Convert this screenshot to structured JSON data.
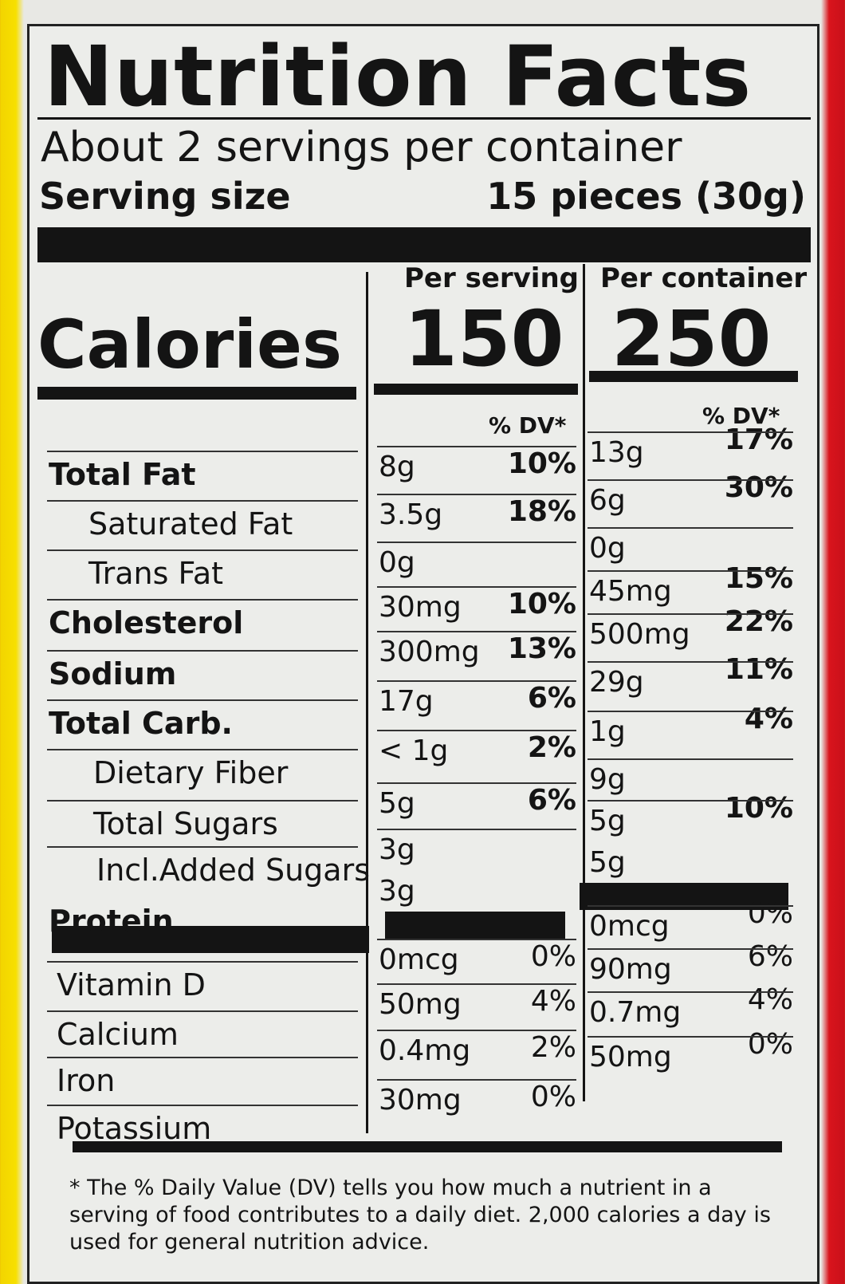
{
  "title": "Nutrition Facts",
  "servings": "About 2 servings per container",
  "serving_size": {
    "label": "Serving size",
    "value": "15 pieces (30g)"
  },
  "calories": {
    "label": "Calories",
    "per_serving": {
      "header": "Per serving",
      "value": 150
    },
    "per_container": {
      "header": "Per container",
      "value": 250
    }
  },
  "dv_header": [
    "% DV*",
    "% DV*"
  ],
  "nutrients": [
    "Total Fat",
    "Saturated Fat",
    "Trans Fat",
    "Cholesterol",
    "Sodium",
    "Total Carb.",
    "Dietary Fiber",
    "Total Sugars",
    "Incl.Added Sugars",
    "Protein",
    "Vitamin D",
    "Calcium",
    "Iron",
    "Potassium"
  ],
  "per_serving": [
    {
      "amount": "8g",
      "dv": "10%"
    },
    {
      "amount": "3.5g",
      "dv": "18%"
    },
    {
      "amount": "0g"
    },
    {
      "amount": "30mg",
      "dv": "10%"
    },
    {
      "amount": "300mg",
      "dv": "13%"
    },
    {
      "amount": "17g",
      "dv": "6%"
    },
    {
      "amount": "< 1g",
      "dv": "2%"
    },
    {
      "amount": "5g",
      "dv": "6%"
    },
    {
      "amount": "3g"
    },
    {
      "amount": "3g"
    },
    {
      "amount": "0mcg",
      "dv": "0%"
    },
    {
      "amount": "50mg",
      "dv": "4%"
    },
    {
      "amount": "0.4mg",
      "dv": "2%"
    },
    {
      "amount": "30mg",
      "dv": "0%"
    }
  ],
  "per_container": [
    {
      "amount": "13g",
      "dv": "17%"
    },
    {
      "amount": "6g",
      "dv": "30%"
    },
    {
      "amount": "0g"
    },
    {
      "amount": "45mg",
      "dv": "15%"
    },
    {
      "amount": "500mg",
      "dv": "22%"
    },
    {
      "amount": "29g",
      "dv": "11%"
    },
    {
      "amount": "1g",
      "dv": "4%"
    },
    {
      "amount": "9g"
    },
    {
      "amount": "5g",
      "dv": "10%"
    },
    {
      "amount": "5g"
    },
    {
      "amount": "0mcg",
      "dv": "0%"
    },
    {
      "amount": "90mg",
      "dv": "6%"
    },
    {
      "amount": "0.7mg",
      "dv": "4%"
    },
    {
      "amount": "50mg",
      "dv": "0%"
    }
  ],
  "footnote": "* The % Daily Value (DV) tells you how much a nutrient in a serving of food contributes to a daily diet. 2,000 calories a day is used for general nutrition advice."
}
